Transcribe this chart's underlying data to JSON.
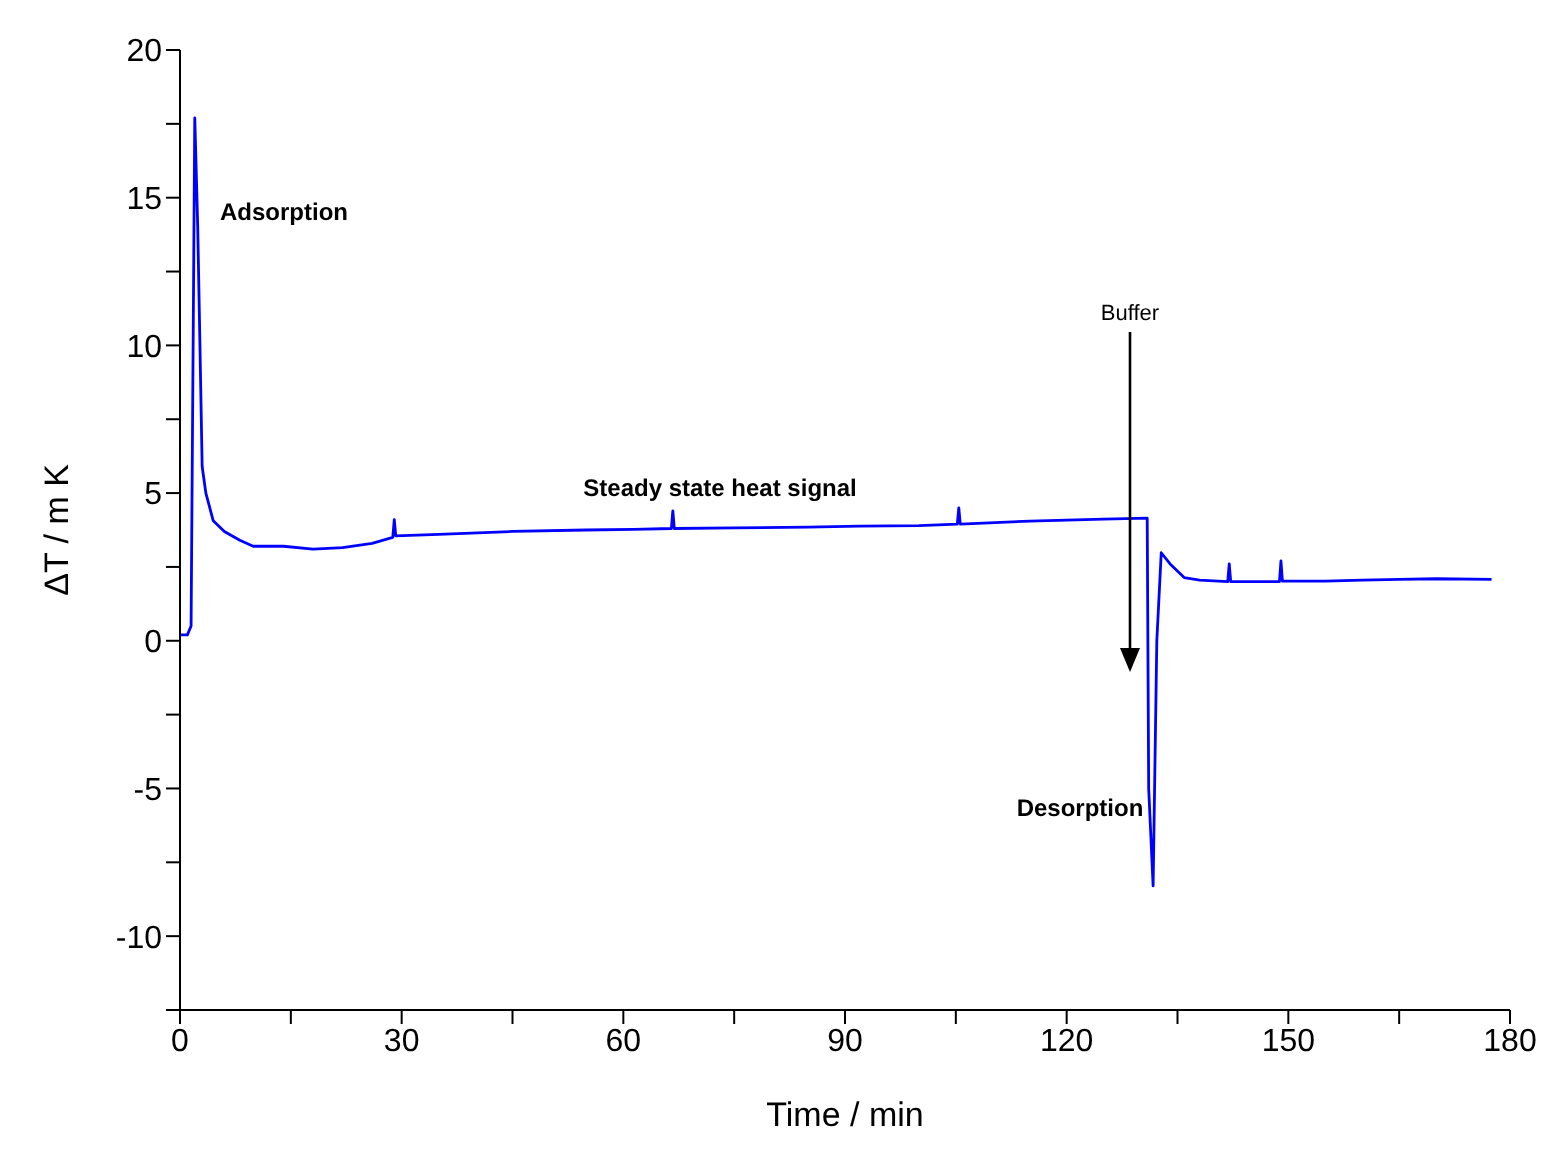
{
  "chart_data": {
    "type": "line",
    "xlabel": "Time / min",
    "ylabel": "ΔT / m K",
    "x": [
      0,
      1.0,
      1.5,
      2.0,
      2.4,
      2.7,
      3.0,
      3.5,
      4.5,
      6,
      8.1,
      9.9,
      14,
      18,
      22,
      26,
      28.8,
      29,
      29.2,
      35,
      45,
      55,
      61.4,
      66.5,
      66.7,
      66.9,
      75,
      85,
      92,
      100,
      105.2,
      105.4,
      105.6,
      115,
      125,
      130.9,
      131.1,
      131.7,
      132.2,
      132.8,
      134,
      135.9,
      138,
      141.8,
      142,
      142.2,
      148.8,
      149,
      149.2,
      155,
      160,
      165,
      170,
      177.5
    ],
    "series": [
      {
        "color": "#0000ff",
        "values": [
          0.2,
          0.2,
          0.5,
          17.7,
          14,
          10,
          5.9,
          5.0,
          4.06,
          3.7,
          3.4,
          3.2,
          3.2,
          3.1,
          3.15,
          3.3,
          3.5,
          4.1,
          3.55,
          3.6,
          3.7,
          3.75,
          3.77,
          3.8,
          4.4,
          3.8,
          3.82,
          3.85,
          3.88,
          3.9,
          3.95,
          4.5,
          3.95,
          4.05,
          4.12,
          4.15,
          -5,
          -8.3,
          0,
          2.98,
          2.6,
          2.14,
          2.05,
          2.0,
          2.6,
          2.0,
          2.0,
          2.7,
          2.02,
          2.02,
          2.05,
          2.08,
          2.1,
          2.08
        ]
      }
    ],
    "xlim": [
      0,
      180
    ],
    "xticks": [
      0,
      {
        "value": 15,
        "label": null
      },
      30,
      {
        "value": 45,
        "label": null
      },
      60,
      {
        "value": 75,
        "label": null
      },
      90,
      {
        "value": 105,
        "label": null
      },
      120,
      {
        "value": 135,
        "label": null
      },
      150,
      {
        "value": 165,
        "label": null
      },
      180
    ],
    "ylim": [
      -12.5,
      20
    ],
    "yticks": [
      {
        "value": -12.5,
        "label": null
      },
      -10,
      {
        "value": -7.5,
        "label": null
      },
      -5,
      {
        "value": -2.5,
        "label": null
      },
      0,
      {
        "value": 2.5,
        "label": null
      },
      5,
      {
        "value": 7.5,
        "label": null
      },
      10,
      {
        "value": 12.5,
        "label": null
      },
      15,
      {
        "value": 17.5,
        "label": null
      },
      20
    ],
    "grid": false,
    "legend": false,
    "marker": "none",
    "line_style": "solid",
    "annotations": [
      "Adsorption",
      "Steady state heat signal",
      "Desorption",
      "Buffer"
    ]
  }
}
